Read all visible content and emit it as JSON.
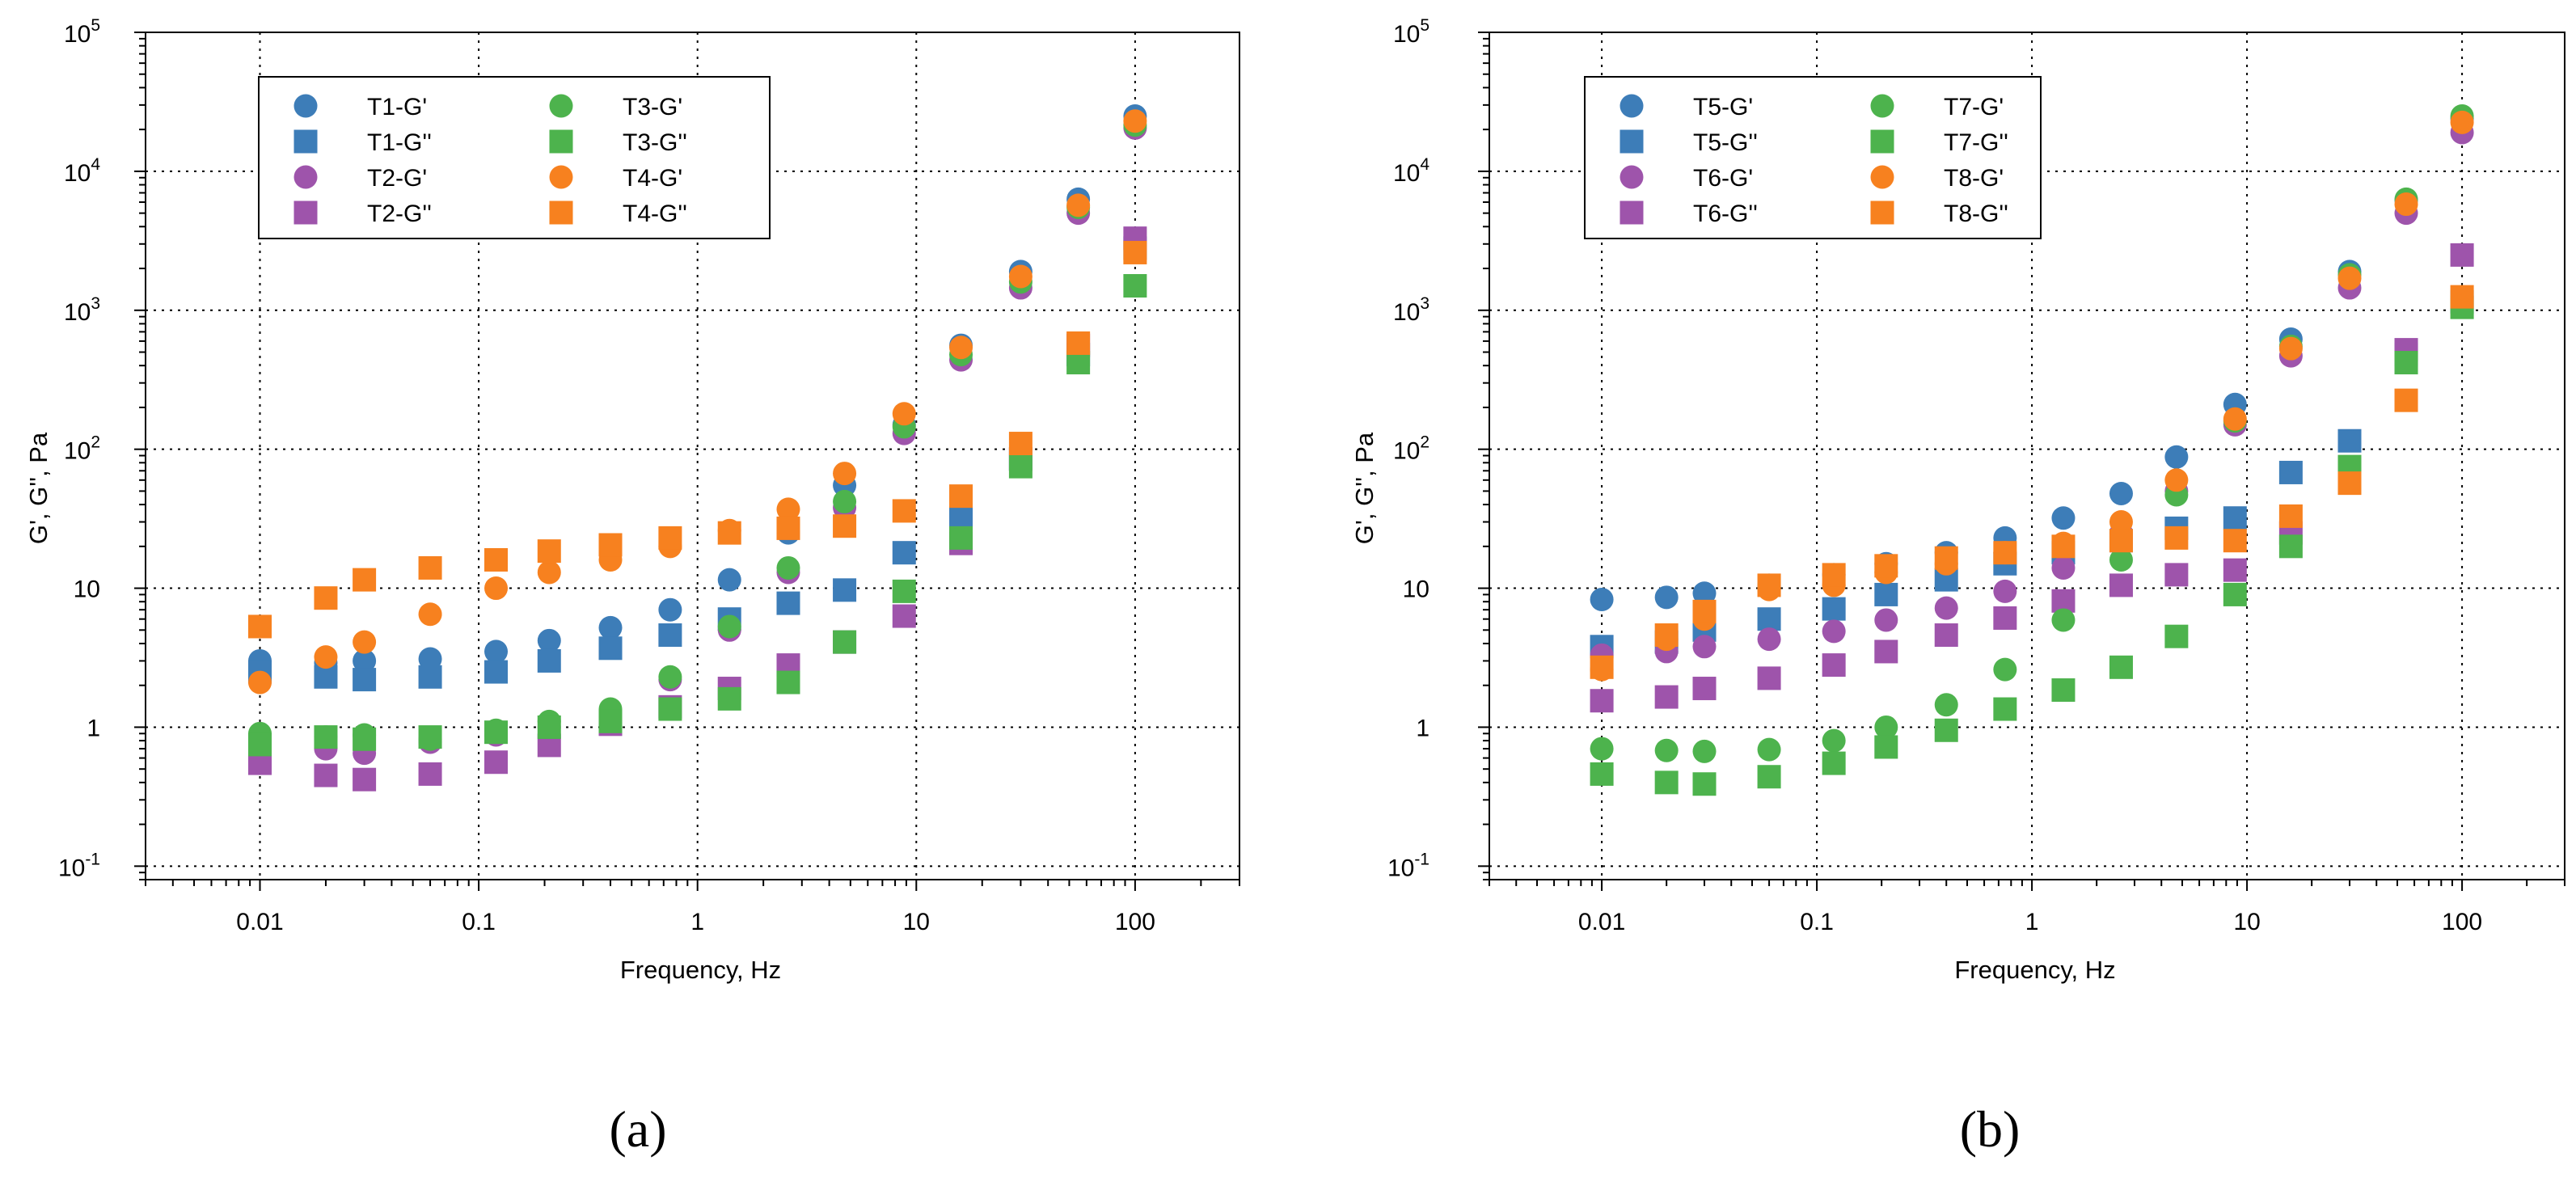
{
  "chart_data": [
    {
      "type": "scatter",
      "panel_label": "(a)",
      "xlabel": "Frequency, Hz",
      "ylabel": "G', G'', Pa",
      "xscale": "log",
      "yscale": "log",
      "xlim": [
        0.003,
        300
      ],
      "ylim": [
        0.08,
        100000
      ],
      "grid": "dotted",
      "legend": "top-left",
      "x_ticks": [
        {
          "value": 0.01,
          "label": "0.01"
        },
        {
          "value": 0.1,
          "label": "0.1"
        },
        {
          "value": 1,
          "label": "1"
        },
        {
          "value": 10,
          "label": "10"
        },
        {
          "value": 100,
          "label": "100"
        }
      ],
      "y_ticks": [
        {
          "value": 0.1,
          "base": "10",
          "exp": "-1"
        },
        {
          "value": 1,
          "label": "1"
        },
        {
          "value": 10,
          "label": "10"
        },
        {
          "value": 100,
          "base": "10",
          "exp": "2"
        },
        {
          "value": 1000,
          "base": "10",
          "exp": "3"
        },
        {
          "value": 10000,
          "base": "10",
          "exp": "4"
        },
        {
          "value": 100000,
          "base": "10",
          "exp": "5"
        }
      ],
      "x": [
        0.01,
        0.02,
        0.03,
        0.06,
        0.12,
        0.21,
        0.4,
        0.75,
        1.4,
        2.6,
        4.7,
        8.8,
        16,
        30,
        55,
        100
      ],
      "series": [
        {
          "name": "T1-G'",
          "marker": "circle",
          "color": "#3D7DB8",
          "values": [
            3.0,
            2.9,
            3.0,
            3.1,
            3.5,
            4.2,
            5.2,
            7.0,
            11.5,
            25,
            55,
            150,
            560,
            1900,
            6300,
            25000
          ]
        },
        {
          "name": "T1-G''",
          "marker": "square",
          "color": "#3D7DB8",
          "values": [
            2.5,
            2.3,
            2.2,
            2.3,
            2.5,
            3.0,
            3.7,
            4.6,
            6.0,
            7.8,
            9.7,
            18,
            32,
            85,
            480,
            2800
          ]
        },
        {
          "name": "T2-G'",
          "marker": "circle",
          "color": "#9E54AB",
          "values": [
            0.65,
            0.7,
            0.65,
            0.78,
            0.88,
            1.0,
            1.3,
            2.2,
            5.0,
            13,
            38,
            130,
            440,
            1450,
            5000,
            20500
          ]
        },
        {
          "name": "T2-G''",
          "marker": "square",
          "color": "#9E54AB",
          "values": [
            0.55,
            0.45,
            0.42,
            0.46,
            0.56,
            0.74,
            1.05,
            1.4,
            1.9,
            2.8,
            4.1,
            6.3,
            21,
            85,
            560,
            3300
          ]
        },
        {
          "name": "T3-G'",
          "marker": "circle",
          "color": "#4DB34D",
          "values": [
            0.9,
            0.85,
            0.88,
            0.82,
            0.95,
            1.1,
            1.35,
            2.3,
            5.3,
            14,
            42,
            145,
            480,
            1600,
            5500,
            21500
          ]
        },
        {
          "name": "T3-G''",
          "marker": "square",
          "color": "#4DB34D",
          "values": [
            0.75,
            0.85,
            0.82,
            0.85,
            0.92,
            1.0,
            1.1,
            1.35,
            1.6,
            2.1,
            4.1,
            9.5,
            23,
            75,
            420,
            1500
          ]
        },
        {
          "name": "T4-G'",
          "marker": "circle",
          "color": "#F7811F",
          "values": [
            2.1,
            3.2,
            4.1,
            6.5,
            10,
            13,
            16,
            20,
            26,
            37,
            67,
            180,
            540,
            1750,
            5700,
            23000
          ]
        },
        {
          "name": "T4-G''",
          "marker": "square",
          "color": "#F7811F",
          "values": [
            5.3,
            8.5,
            11.5,
            14,
            16,
            18.5,
            20.5,
            23,
            25,
            27,
            28,
            36,
            46,
            110,
            580,
            2600
          ]
        }
      ]
    },
    {
      "type": "scatter",
      "panel_label": "(b)",
      "xlabel": "Frequency, Hz",
      "ylabel": "G', G'', Pa",
      "xscale": "log",
      "yscale": "log",
      "xlim": [
        0.003,
        300
      ],
      "ylim": [
        0.08,
        100000
      ],
      "grid": "dotted",
      "legend": "top-left",
      "x_ticks": [
        {
          "value": 0.01,
          "label": "0.01"
        },
        {
          "value": 0.1,
          "label": "0.1"
        },
        {
          "value": 1,
          "label": "1"
        },
        {
          "value": 10,
          "label": "10"
        },
        {
          "value": 100,
          "label": "100"
        }
      ],
      "y_ticks": [
        {
          "value": 0.1,
          "base": "10",
          "exp": "-1"
        },
        {
          "value": 1,
          "label": "1"
        },
        {
          "value": 10,
          "label": "10"
        },
        {
          "value": 100,
          "base": "10",
          "exp": "2"
        },
        {
          "value": 1000,
          "base": "10",
          "exp": "3"
        },
        {
          "value": 10000,
          "base": "10",
          "exp": "4"
        },
        {
          "value": 100000,
          "base": "10",
          "exp": "5"
        }
      ],
      "x": [
        0.01,
        0.02,
        0.03,
        0.06,
        0.12,
        0.21,
        0.4,
        0.75,
        1.4,
        2.6,
        4.7,
        8.8,
        16,
        30,
        55,
        100
      ],
      "series": [
        {
          "name": "T5-G'",
          "marker": "circle",
          "color": "#3D7DB8",
          "values": [
            8.3,
            8.6,
            9.2,
            10.5,
            12.5,
            15,
            18,
            23,
            32,
            48,
            88,
            210,
            620,
            1900,
            6200,
            24000
          ]
        },
        {
          "name": "T5-G''",
          "marker": "square",
          "color": "#3D7DB8",
          "values": [
            3.8,
            4.1,
            5.0,
            6.0,
            7.1,
            9.0,
            11.5,
            15,
            18,
            22,
            27,
            32,
            68,
            115,
            480,
            1150
          ]
        },
        {
          "name": "T6-G'",
          "marker": "circle",
          "color": "#9E54AB",
          "values": [
            3.3,
            3.5,
            3.8,
            4.3,
            4.9,
            5.9,
            7.2,
            9.5,
            14,
            25,
            50,
            150,
            470,
            1450,
            5000,
            19000
          ]
        },
        {
          "name": "T6-G''",
          "marker": "square",
          "color": "#9E54AB",
          "values": [
            1.55,
            1.65,
            1.9,
            2.25,
            2.8,
            3.5,
            4.6,
            6.1,
            8.1,
            10.5,
            12.5,
            13.5,
            25,
            70,
            520,
            2500
          ]
        },
        {
          "name": "T7-G'",
          "marker": "circle",
          "color": "#4DB34D",
          "values": [
            0.7,
            0.68,
            0.67,
            0.69,
            0.8,
            1.0,
            1.45,
            2.6,
            5.9,
            16,
            47,
            160,
            550,
            1800,
            6300,
            25000
          ]
        },
        {
          "name": "T7-G''",
          "marker": "square",
          "color": "#4DB34D",
          "values": [
            0.46,
            0.4,
            0.39,
            0.44,
            0.55,
            0.72,
            0.95,
            1.35,
            1.85,
            2.7,
            4.5,
            9.0,
            20,
            75,
            420,
            1050
          ]
        },
        {
          "name": "T8-G'",
          "marker": "circle",
          "color": "#F7811F",
          "values": [
            2.6,
            4.3,
            6.0,
            9.8,
            10.5,
            13,
            15,
            18,
            21,
            30,
            60,
            165,
            530,
            1700,
            5800,
            22500
          ]
        },
        {
          "name": "T8-G''",
          "marker": "square",
          "color": "#F7811F",
          "values": [
            2.7,
            4.6,
            6.8,
            10.5,
            12.5,
            14.5,
            16.5,
            18,
            20,
            22,
            23,
            22,
            33,
            57,
            225,
            1250
          ]
        }
      ]
    }
  ]
}
